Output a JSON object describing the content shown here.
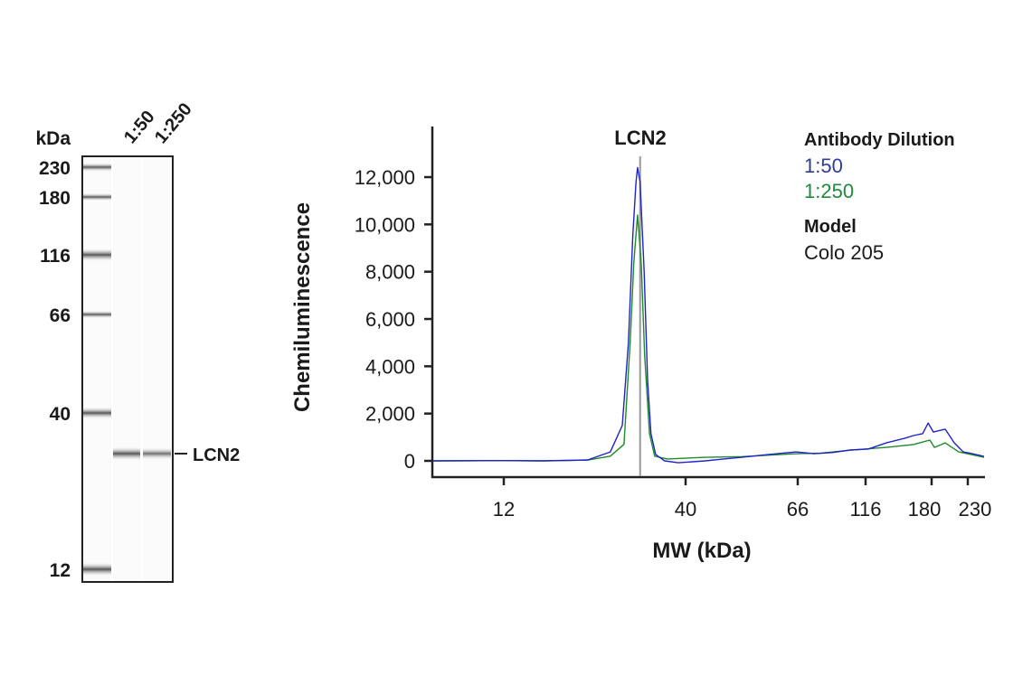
{
  "blot": {
    "unit_label": "kDa",
    "lanes": [
      "1:50",
      "1:250"
    ],
    "markers": [
      "230",
      "180",
      "116",
      "66",
      "40",
      "12"
    ],
    "band_label": "LCN2"
  },
  "chart_data": {
    "type": "line",
    "title": "LCN2",
    "xlabel": "MW (kDa)",
    "ylabel": "Chemiluminescence",
    "x_scale": "log-ish (ladder-calibrated)",
    "x_ticks": [
      12,
      40,
      66,
      116,
      180,
      230
    ],
    "x_tick_labels": [
      "12",
      "40",
      "66",
      "116",
      "180",
      "230"
    ],
    "xlim": [
      7.5,
      257
    ],
    "ylim": [
      -600,
      14000
    ],
    "y_ticks": [
      0,
      2000,
      4000,
      6000,
      8000,
      10000,
      12000
    ],
    "y_tick_labels": [
      "0",
      "2,000",
      "4,000",
      "6,000",
      "8,000",
      "10,000",
      "12,000"
    ],
    "marker_line_x": 29.6,
    "legend": {
      "title": "Antibody Dilution",
      "placement": "top-right",
      "model_title": "Model",
      "model_value": "Colo 205"
    },
    "series": [
      {
        "name": "1:50",
        "color": "#1f24c8",
        "label_color": "#2b3d9a",
        "points": [
          [
            7.5,
            0
          ],
          [
            12,
            10
          ],
          [
            15.5,
            0
          ],
          [
            18,
            20
          ],
          [
            20.9,
            40
          ],
          [
            24.3,
            380
          ],
          [
            26.3,
            1500
          ],
          [
            27.4,
            5000
          ],
          [
            28.2,
            9500
          ],
          [
            28.8,
            11800
          ],
          [
            29.1,
            12400
          ],
          [
            29.6,
            11800
          ],
          [
            30.4,
            8000
          ],
          [
            31.1,
            3400
          ],
          [
            31.8,
            1150
          ],
          [
            32.8,
            270
          ],
          [
            34.8,
            0
          ],
          [
            38.1,
            -80
          ],
          [
            43.7,
            0
          ],
          [
            47.4,
            80
          ],
          [
            51.4,
            150
          ],
          [
            58.0,
            270
          ],
          [
            65.5,
            380
          ],
          [
            75.6,
            300
          ],
          [
            88,
            350
          ],
          [
            102.1,
            460
          ],
          [
            118.1,
            500
          ],
          [
            133.2,
            760
          ],
          [
            150.3,
            950
          ],
          [
            159.6,
            1070
          ],
          [
            169.6,
            1150
          ],
          [
            175.9,
            1600
          ],
          [
            182.2,
            1220
          ],
          [
            197.3,
            1340
          ],
          [
            209.9,
            760
          ],
          [
            223.1,
            380
          ],
          [
            237.2,
            300
          ],
          [
            256.9,
            190
          ]
        ]
      },
      {
        "name": "1:250",
        "color": "#1e8a2a",
        "label_color": "#1e8a3a",
        "points": [
          [
            7.5,
            0
          ],
          [
            12,
            10
          ],
          [
            15.5,
            0
          ],
          [
            20.9,
            30
          ],
          [
            24.3,
            200
          ],
          [
            26.6,
            700
          ],
          [
            27.7,
            5000
          ],
          [
            28.4,
            8400
          ],
          [
            29.1,
            10400
          ],
          [
            29.8,
            8400
          ],
          [
            30.5,
            4500
          ],
          [
            31.5,
            1150
          ],
          [
            32.6,
            200
          ],
          [
            35.4,
            80
          ],
          [
            43.7,
            150
          ],
          [
            51.4,
            180
          ],
          [
            65.5,
            300
          ],
          [
            80,
            330
          ],
          [
            102.1,
            450
          ],
          [
            133.2,
            570
          ],
          [
            159.6,
            690
          ],
          [
            177.9,
            880
          ],
          [
            183.4,
            570
          ],
          [
            197.3,
            760
          ],
          [
            216.3,
            380
          ],
          [
            256.9,
            150
          ]
        ]
      }
    ]
  }
}
